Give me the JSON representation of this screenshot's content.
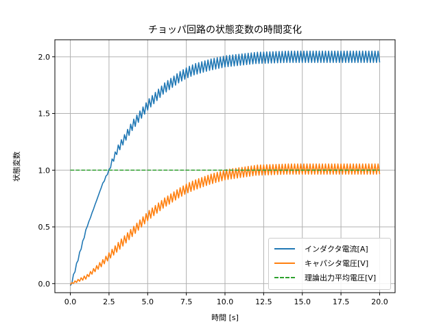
{
  "chart_data": {
    "type": "line",
    "title": "チョッパ回路の状態変数の時間変化",
    "xlabel": "時間 [s]",
    "ylabel": "状態変数",
    "xlim": [
      -1.0,
      21.0
    ],
    "ylim": [
      -0.08,
      2.15
    ],
    "xticks": [
      0.0,
      2.5,
      5.0,
      7.5,
      10.0,
      12.5,
      15.0,
      17.5,
      20.0
    ],
    "xtick_labels": [
      "0.0",
      "2.5",
      "5.0",
      "7.5",
      "10.0",
      "12.5",
      "15.0",
      "17.5",
      "20.0"
    ],
    "yticks": [
      0.0,
      0.5,
      1.0,
      1.5,
      2.0
    ],
    "ytick_labels": [
      "0.0",
      "0.5",
      "1.0",
      "1.5",
      "2.0"
    ],
    "grid": true,
    "legend_position": "lower right",
    "series": [
      {
        "name": "インダクタ電流[A]",
        "color": "#1f77b4",
        "style": "solid",
        "x": [
          0,
          1,
          2,
          2.5,
          3,
          4,
          5,
          6,
          7,
          7.5,
          8,
          9,
          10,
          12,
          14,
          16,
          18,
          20
        ],
        "values": [
          0.0,
          0.5,
          0.88,
          1.03,
          1.18,
          1.4,
          1.58,
          1.72,
          1.82,
          1.86,
          1.89,
          1.93,
          1.96,
          1.99,
          2.0,
          2.0,
          2.0,
          2.0
        ],
        "ripple_amplitude": 0.05,
        "ripple_note": "sawtooth ripple around mean curve"
      },
      {
        "name": "キャパシタ電圧[V]",
        "color": "#ff7f0e",
        "style": "solid",
        "x": [
          0,
          1,
          2,
          2.5,
          3,
          4,
          5,
          6,
          7,
          7.5,
          8,
          9,
          10,
          12,
          14,
          16,
          18,
          20
        ],
        "values": [
          0.0,
          0.06,
          0.18,
          0.25,
          0.32,
          0.46,
          0.6,
          0.71,
          0.8,
          0.84,
          0.87,
          0.92,
          0.96,
          1.0,
          1.01,
          1.01,
          1.01,
          1.01
        ],
        "ripple_amplitude": 0.045,
        "ripple_note": "triangular ripple around mean curve"
      },
      {
        "name": "理論出力平均電圧[V]",
        "color": "#2ca02c",
        "style": "dashed",
        "x": [
          0,
          20
        ],
        "values": [
          1.0,
          1.0
        ]
      }
    ]
  },
  "legend": {
    "items": [
      {
        "label": "インダクタ電流[A]",
        "color": "#1f77b4",
        "style": "solid"
      },
      {
        "label": "キャパシタ電圧[V]",
        "color": "#ff7f0e",
        "style": "solid"
      },
      {
        "label": "理論出力平均電圧[V]",
        "color": "#2ca02c",
        "style": "dashed"
      }
    ]
  }
}
